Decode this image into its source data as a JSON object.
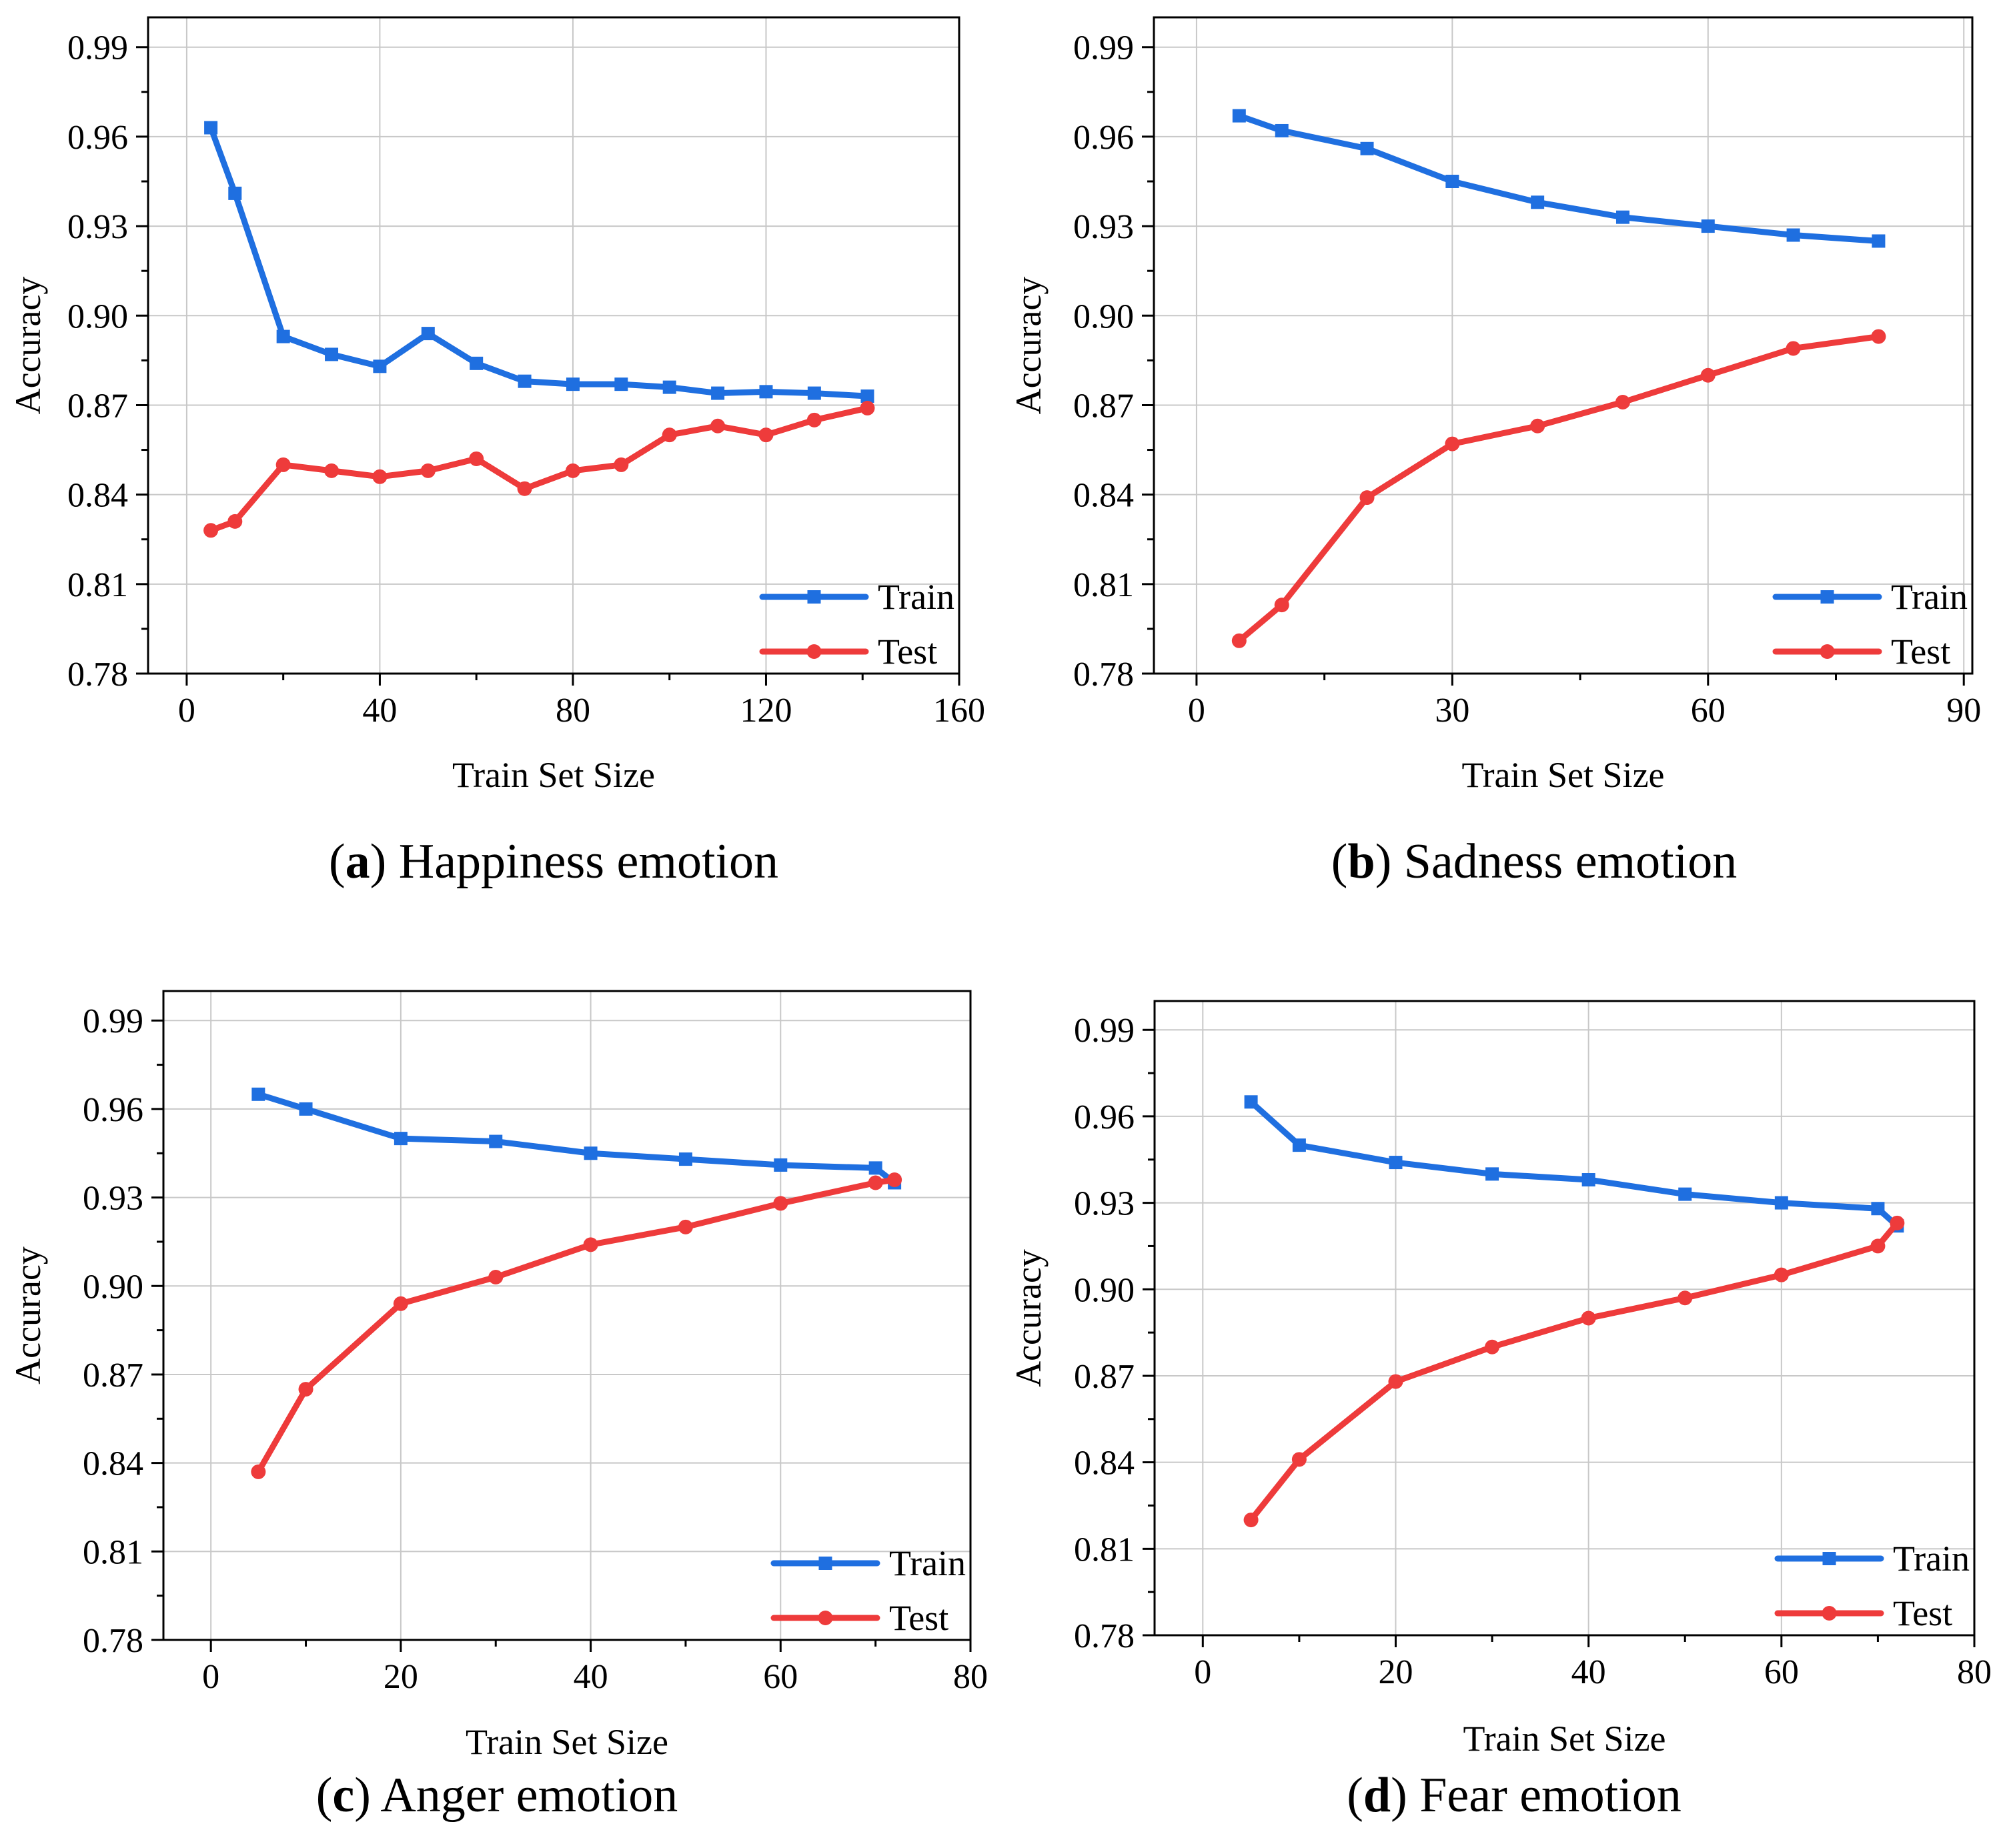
{
  "chart_data": [
    {
      "type": "line",
      "panel_letter": "a",
      "caption": "Happiness emotion",
      "xlabel": "Train Set Size",
      "ylabel": "Accuracy",
      "xlim": [
        -8,
        160
      ],
      "ylim": [
        0.78,
        1.0
      ],
      "xticks": [
        0,
        40,
        80,
        120,
        160
      ],
      "xtick_labels": [
        "0",
        "40",
        "80",
        "120",
        "160"
      ],
      "yticks": [
        0.78,
        0.81,
        0.84,
        0.87,
        0.9,
        0.93,
        0.96,
        0.99
      ],
      "ytick_labels": [
        "0.78",
        "0.81",
        "0.84",
        "0.87",
        "0.90",
        "0.93",
        "0.96",
        "0.99"
      ],
      "grid": true,
      "legend": "bottom-right",
      "series": [
        {
          "name": "Train",
          "color": "#1f6fe0",
          "marker": "square",
          "x": [
            5,
            10,
            20,
            30,
            40,
            50,
            60,
            70,
            80,
            90,
            100,
            110,
            120,
            130,
            141
          ],
          "y": [
            0.963,
            0.941,
            0.893,
            0.887,
            0.883,
            0.894,
            0.884,
            0.878,
            0.877,
            0.877,
            0.876,
            0.874,
            0.8745,
            0.874,
            0.873
          ]
        },
        {
          "name": "Test",
          "color": "#ee3b3b",
          "marker": "circle",
          "x": [
            5,
            10,
            20,
            30,
            40,
            50,
            60,
            70,
            80,
            90,
            100,
            110,
            120,
            130,
            141
          ],
          "y": [
            0.828,
            0.831,
            0.85,
            0.848,
            0.846,
            0.848,
            0.852,
            0.842,
            0.848,
            0.85,
            0.86,
            0.863,
            0.86,
            0.865,
            0.869
          ]
        }
      ]
    },
    {
      "type": "line",
      "panel_letter": "b",
      "caption": "Sadness emotion",
      "xlabel": "Train Set Size",
      "ylabel": "Accuracy",
      "xlim": [
        -5,
        91
      ],
      "ylim": [
        0.78,
        1.0
      ],
      "xticks": [
        0,
        30,
        60,
        90
      ],
      "xtick_labels": [
        "0",
        "30",
        "60",
        "90"
      ],
      "yticks": [
        0.78,
        0.81,
        0.84,
        0.87,
        0.9,
        0.93,
        0.96,
        0.99
      ],
      "ytick_labels": [
        "0.78",
        "0.81",
        "0.84",
        "0.87",
        "0.90",
        "0.93",
        "0.96",
        "0.99"
      ],
      "grid": true,
      "legend": "bottom-right",
      "series": [
        {
          "name": "Train",
          "color": "#1f6fe0",
          "marker": "square",
          "x": [
            5,
            10,
            20,
            30,
            40,
            50,
            60,
            70,
            80
          ],
          "y": [
            0.967,
            0.962,
            0.956,
            0.945,
            0.938,
            0.933,
            0.93,
            0.927,
            0.925
          ]
        },
        {
          "name": "Test",
          "color": "#ee3b3b",
          "marker": "circle",
          "x": [
            5,
            10,
            20,
            30,
            40,
            50,
            60,
            70,
            80
          ],
          "y": [
            0.791,
            0.803,
            0.839,
            0.857,
            0.863,
            0.871,
            0.88,
            0.889,
            0.893
          ]
        }
      ]
    },
    {
      "type": "line",
      "panel_letter": "c",
      "caption": "Anger emotion",
      "xlabel": "Train Set Size",
      "ylabel": "Accuracy",
      "xlim": [
        -5,
        80
      ],
      "ylim": [
        0.78,
        1.0
      ],
      "xticks": [
        0,
        20,
        40,
        60,
        80
      ],
      "xtick_labels": [
        "0",
        "20",
        "40",
        "60",
        "80"
      ],
      "yticks": [
        0.78,
        0.81,
        0.84,
        0.87,
        0.9,
        0.93,
        0.96,
        0.99
      ],
      "ytick_labels": [
        "0.78",
        "0.81",
        "0.84",
        "0.87",
        "0.90",
        "0.93",
        "0.96",
        "0.99"
      ],
      "grid": true,
      "legend": "bottom-right",
      "series": [
        {
          "name": "Train",
          "color": "#1f6fe0",
          "marker": "square",
          "x": [
            5,
            10,
            20,
            30,
            40,
            50,
            60,
            70,
            72
          ],
          "y": [
            0.965,
            0.96,
            0.95,
            0.949,
            0.945,
            0.943,
            0.941,
            0.94,
            0.935
          ]
        },
        {
          "name": "Test",
          "color": "#ee3b3b",
          "marker": "circle",
          "x": [
            5,
            10,
            20,
            30,
            40,
            50,
            60,
            70,
            72
          ],
          "y": [
            0.837,
            0.865,
            0.894,
            0.903,
            0.914,
            0.92,
            0.928,
            0.935,
            0.936
          ]
        }
      ]
    },
    {
      "type": "line",
      "panel_letter": "d",
      "caption": "Fear emotion",
      "xlabel": "Train Set Size",
      "ylabel": "Accuracy",
      "xlim": [
        -5,
        80
      ],
      "ylim": [
        0.78,
        1.0
      ],
      "xticks": [
        0,
        20,
        40,
        60,
        80
      ],
      "xtick_labels": [
        "0",
        "20",
        "40",
        "60",
        "80"
      ],
      "yticks": [
        0.78,
        0.81,
        0.84,
        0.87,
        0.9,
        0.93,
        0.96,
        0.99
      ],
      "ytick_labels": [
        "0.78",
        "0.81",
        "0.84",
        "0.87",
        "0.90",
        "0.93",
        "0.96",
        "0.99"
      ],
      "grid": true,
      "legend": "bottom-right",
      "series": [
        {
          "name": "Train",
          "color": "#1f6fe0",
          "marker": "square",
          "x": [
            5,
            10,
            20,
            30,
            40,
            50,
            60,
            70,
            72
          ],
          "y": [
            0.965,
            0.95,
            0.944,
            0.94,
            0.938,
            0.933,
            0.93,
            0.928,
            0.922
          ]
        },
        {
          "name": "Test",
          "color": "#ee3b3b",
          "marker": "circle",
          "x": [
            5,
            10,
            20,
            30,
            40,
            50,
            60,
            70,
            72
          ],
          "y": [
            0.82,
            0.841,
            0.868,
            0.88,
            0.89,
            0.897,
            0.905,
            0.915,
            0.923
          ]
        }
      ]
    }
  ]
}
